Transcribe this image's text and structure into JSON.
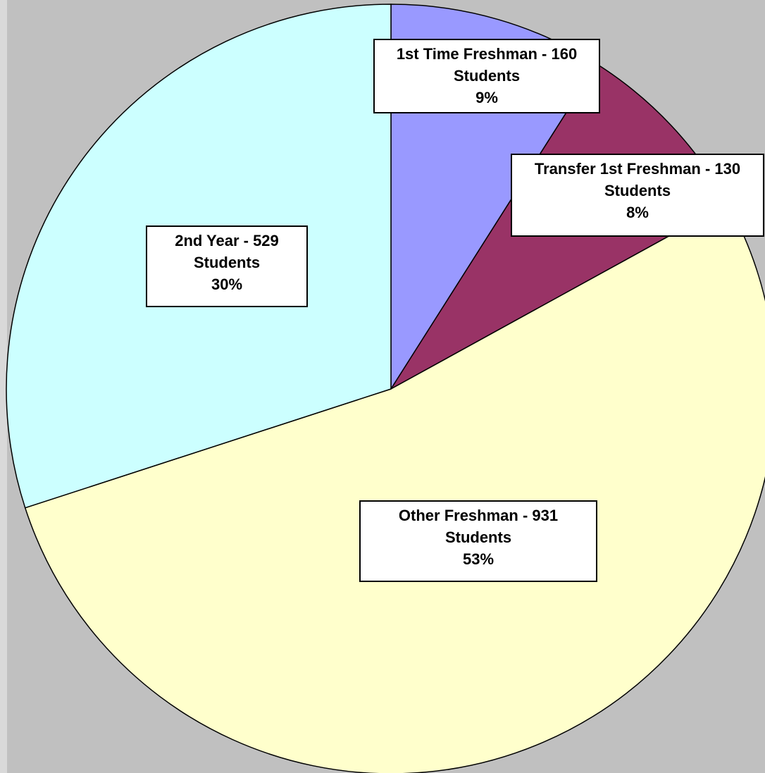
{
  "chart_data": {
    "type": "pie",
    "categories": [
      "1st Time Freshman - 160 Students",
      "Transfer 1st Freshman - 130 Students",
      "Other Freshman - 931 Students",
      "2nd Year - 529 Students"
    ],
    "values": [
      9,
      8,
      53,
      30
    ],
    "value_labels": [
      "9%",
      "8%",
      "53%",
      "30%"
    ],
    "colors": [
      "#9999ff",
      "#993366",
      "#ffffcc",
      "#ccffff"
    ]
  }
}
